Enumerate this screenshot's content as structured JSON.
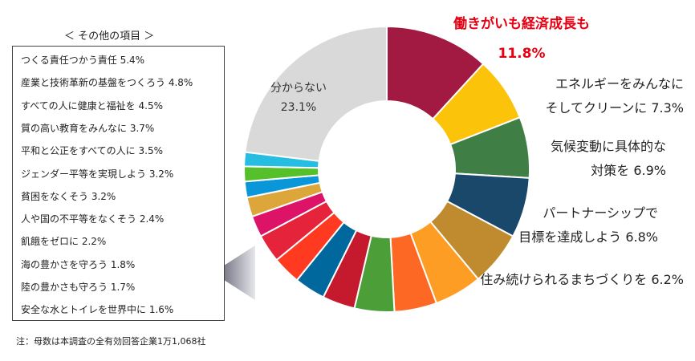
{
  "chart_data": {
    "type": "pie",
    "style": "donut",
    "unit": "%",
    "slices": [
      {
        "label": "働きがいも経済成長も",
        "value": 11.8,
        "color": "#A21942"
      },
      {
        "label": "エネルギーをみんなに そしてクリーンに",
        "value": 7.3,
        "color": "#FCC30B"
      },
      {
        "label": "気候変動に具体的な 対策を",
        "value": 6.9,
        "color": "#3F7E44"
      },
      {
        "label": "パートナーシップで 目標を達成しよう",
        "value": 6.8,
        "color": "#19486A"
      },
      {
        "label": "住み続けられるまちづくりを",
        "value": 6.2,
        "color": "#BF8B2E"
      },
      {
        "label": "つくる責任つかう責任",
        "value": 5.4,
        "color": "#FD9D24"
      },
      {
        "label": "産業と技術革新の基盤をつくろう",
        "value": 4.8,
        "color": "#FD6925"
      },
      {
        "label": "すべての人に健康と福祉を",
        "value": 4.5,
        "color": "#4C9F38"
      },
      {
        "label": "質の高い教育をみんなに",
        "value": 3.7,
        "color": "#C5192D"
      },
      {
        "label": "平和と公正をすべての人に",
        "value": 3.5,
        "color": "#00689D"
      },
      {
        "label": "ジェンダー平等を実現しよう",
        "value": 3.2,
        "color": "#FF3A21"
      },
      {
        "label": "貧困をなくそう",
        "value": 3.2,
        "color": "#E5243B"
      },
      {
        "label": "人や国の不平等をなくそう",
        "value": 2.4,
        "color": "#DD1367"
      },
      {
        "label": "飢餓をゼロに",
        "value": 2.2,
        "color": "#DDA63A"
      },
      {
        "label": "海の豊かさを守ろう",
        "value": 1.8,
        "color": "#0A97D9"
      },
      {
        "label": "陸の豊かさも守ろう",
        "value": 1.7,
        "color": "#56C02B"
      },
      {
        "label": "安全な水とトイレを世界中に",
        "value": 1.6,
        "color": "#26BDE2"
      },
      {
        "label": "分からない",
        "value": 23.1,
        "color": "#D9D9D9"
      }
    ],
    "callouts": [
      {
        "lines": [
          "働きがいも経済成長も",
          "11.8%"
        ],
        "highlight": true
      },
      {
        "lines": [
          "エネルギーをみんなに",
          "そしてクリーンに 7.3%"
        ]
      },
      {
        "lines": [
          "気候変動に具体的な",
          "対策を 6.9%"
        ]
      },
      {
        "lines": [
          "パートナーシップで",
          "目標を達成しよう 6.8%"
        ]
      },
      {
        "lines": [
          "住み続けられるまちづくりを 6.2%"
        ]
      }
    ],
    "inside_label": {
      "text": "分からない",
      "value": "23.1%"
    },
    "other_items": {
      "title": "＜ その他の項目 ＞",
      "rows": [
        "つくる責任つかう責任 5.4%",
        "産業と技術革新の基盤をつくろう 4.8%",
        "すべての人に健康と福祉を 4.5%",
        "質の高い教育をみんなに 3.7%",
        "平和と公正をすべての人に 3.5%",
        "ジェンダー平等を実現しよう 3.2%",
        "貧困をなくそう 3.2%",
        "人や国の不平等をなくそう 2.4%",
        "飢餓をゼロに 2.2%",
        "海の豊かさを守ろう 1.8%",
        "陸の豊かさも守ろう 1.7%",
        "安全な水とトイレを世界中に 1.6%"
      ]
    },
    "colors": {
      "highlight": "#E60012",
      "pointer_dark": "#555566",
      "pointer_light": "#E6E6EC"
    }
  },
  "note": "注：母数は本調査の全有効回答企業1万1,068社"
}
